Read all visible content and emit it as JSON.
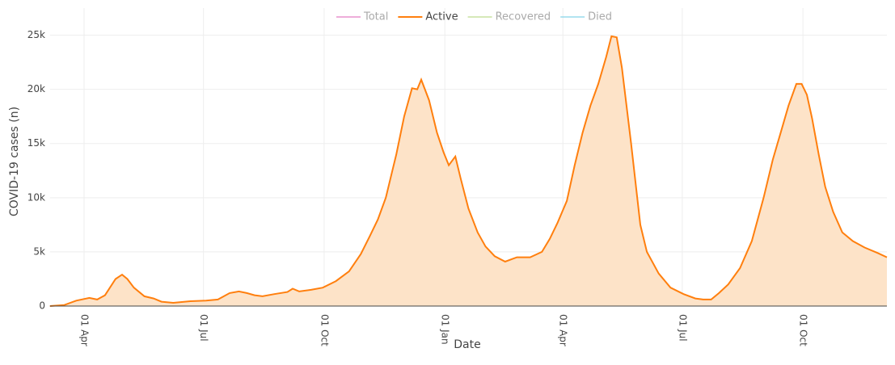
{
  "chart_data": {
    "type": "line",
    "x_label": "Date",
    "y_label": "COVID-19 cases (n)",
    "legend": [
      {
        "name": "Total",
        "color": "#e377c2",
        "visible": false
      },
      {
        "name": "Active",
        "color": "#ff7f0e",
        "visible": true
      },
      {
        "name": "Recovered",
        "color": "#bcdb8a",
        "visible": false
      },
      {
        "name": "Died",
        "color": "#7fd3e8",
        "visible": false
      }
    ],
    "x": [
      0,
      11,
      20,
      30,
      36,
      42,
      50,
      55,
      59,
      64,
      72,
      79,
      85,
      94,
      107,
      119,
      128,
      137,
      144,
      150,
      156,
      162,
      171,
      181,
      185,
      190,
      199,
      208,
      218,
      228,
      237,
      244,
      250,
      256,
      261,
      264,
      270,
      276,
      280,
      283,
      289,
      295,
      300,
      304,
      309,
      313,
      319,
      326,
      332,
      339,
      347,
      356,
      366,
      375,
      381,
      387,
      394,
      400,
      406,
      412,
      418,
      424,
      428,
      432,
      436,
      443,
      450,
      455,
      464,
      473,
      483,
      492,
      498,
      504,
      510,
      517,
      526,
      535,
      544,
      551,
      557,
      563,
      569,
      573,
      577,
      581,
      586,
      591,
      597,
      604,
      612,
      621,
      631,
      638
    ],
    "series": [
      {
        "name": "Active",
        "color": "#ff7f0e",
        "fill": "#fde3c8",
        "values": [
          0,
          100,
          500,
          750,
          600,
          1000,
          2500,
          2900,
          2500,
          1700,
          900,
          700,
          400,
          300,
          450,
          500,
          600,
          1200,
          1350,
          1200,
          1000,
          900,
          1100,
          1300,
          1600,
          1350,
          1500,
          1700,
          2300,
          3200,
          4800,
          6500,
          8000,
          10000,
          12500,
          14000,
          17500,
          20100,
          20000,
          20900,
          19000,
          16000,
          14200,
          13000,
          13800,
          11800,
          9000,
          6800,
          5500,
          4600,
          4100,
          4500,
          4500,
          5000,
          6200,
          7700,
          9700,
          13000,
          16000,
          18500,
          20500,
          23000,
          24900,
          24800,
          22000,
          15000,
          7500,
          5000,
          3000,
          1700,
          1100,
          700,
          600,
          600,
          1200,
          2000,
          3500,
          6000,
          10000,
          13500,
          16000,
          18500,
          20500,
          20500,
          19500,
          17300,
          14000,
          11000,
          8700,
          6800,
          6000,
          5400,
          4900,
          4500
        ]
      }
    ],
    "xlim": [
      0,
      638
    ],
    "xticks": [
      {
        "value": 26,
        "label": "01 Apr"
      },
      {
        "value": 117,
        "label": "01 Jul"
      },
      {
        "value": 209,
        "label": "01 Oct"
      },
      {
        "value": 301,
        "label": "01 Jan"
      },
      {
        "value": 391,
        "label": "01 Apr"
      },
      {
        "value": 482,
        "label": "01 Jul"
      },
      {
        "value": 574,
        "label": "01 Oct"
      }
    ],
    "ylim": [
      0,
      27500
    ],
    "yticks": [
      0,
      {
        "value": 5000,
        "label": "5k"
      },
      {
        "value": 10000,
        "label": "10k"
      },
      {
        "value": 15000,
        "label": "15k"
      },
      {
        "value": 20000,
        "label": "20k"
      },
      {
        "value": 25000,
        "label": "25k"
      }
    ],
    "grid": true
  }
}
